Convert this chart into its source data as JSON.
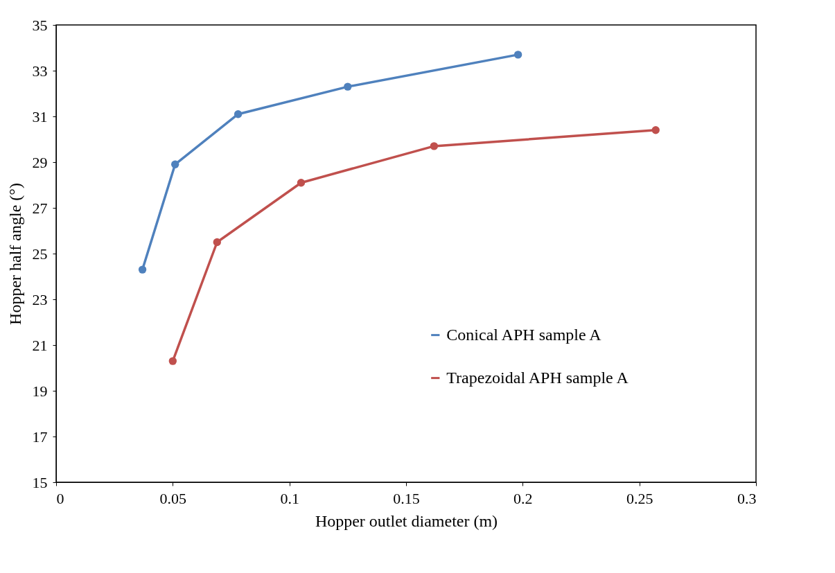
{
  "chart_data": {
    "type": "line",
    "xlabel": "Hopper outlet diameter (m)",
    "ylabel": "Hopper half angle (°)",
    "xlim": [
      0,
      0.3
    ],
    "xticks": [
      0,
      0.05,
      0.1,
      0.15,
      0.2,
      0.25,
      0.3
    ],
    "ylim": [
      15,
      35
    ],
    "yticks": [
      15,
      17,
      19,
      21,
      23,
      25,
      27,
      29,
      31,
      33,
      35
    ],
    "grid": false,
    "legend": "right",
    "marker": "circle",
    "line_style": "solid",
    "series": [
      {
        "name": "Conical APH sample A",
        "color": "#4f81bd",
        "x": [
          0.037,
          0.051,
          0.078,
          0.125,
          0.198
        ],
        "values": [
          24.3,
          28.9,
          31.1,
          32.3,
          33.7
        ]
      },
      {
        "name": "Trapezoidal APH sample A",
        "color": "#c0504d",
        "x": [
          0.05,
          0.069,
          0.105,
          0.162,
          0.257
        ],
        "values": [
          20.3,
          25.5,
          28.1,
          29.7,
          30.4
        ]
      }
    ]
  }
}
